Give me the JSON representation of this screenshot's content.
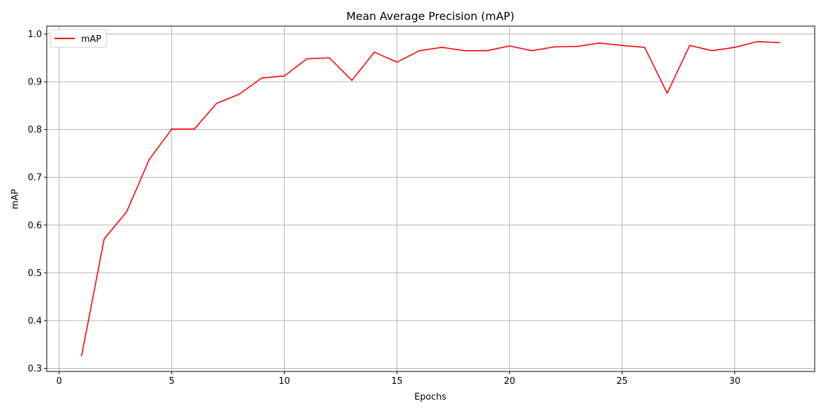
{
  "chart_data": {
    "type": "line",
    "title": "Mean Average Precision (mAP)",
    "xlabel": "Epochs",
    "ylabel": "mAP",
    "xlim": [
      -0.55,
      33.55
    ],
    "ylim": [
      0.2935,
      1.0165
    ],
    "xticks": [
      "0",
      "5",
      "10",
      "15",
      "20",
      "25",
      "30"
    ],
    "yticks": [
      "0.3",
      "0.4",
      "0.5",
      "0.6",
      "0.7",
      "0.8",
      "0.9",
      "1.0"
    ],
    "grid": true,
    "legend_position": "upper left",
    "series": [
      {
        "name": "mAP",
        "color": "#ff0000",
        "x": [
          1,
          2,
          3,
          4,
          5,
          6,
          7,
          8,
          9,
          10,
          11,
          12,
          13,
          14,
          15,
          16,
          17,
          18,
          19,
          20,
          21,
          22,
          23,
          24,
          25,
          26,
          27,
          28,
          29,
          30,
          31,
          32
        ],
        "y": [
          0.327,
          0.571,
          0.628,
          0.737,
          0.801,
          0.801,
          0.855,
          0.874,
          0.908,
          0.912,
          0.948,
          0.95,
          0.903,
          0.962,
          0.941,
          0.965,
          0.972,
          0.965,
          0.965,
          0.975,
          0.965,
          0.973,
          0.974,
          0.981,
          0.976,
          0.972,
          0.876,
          0.976,
          0.965,
          0.972,
          0.984,
          0.982
        ]
      }
    ]
  }
}
